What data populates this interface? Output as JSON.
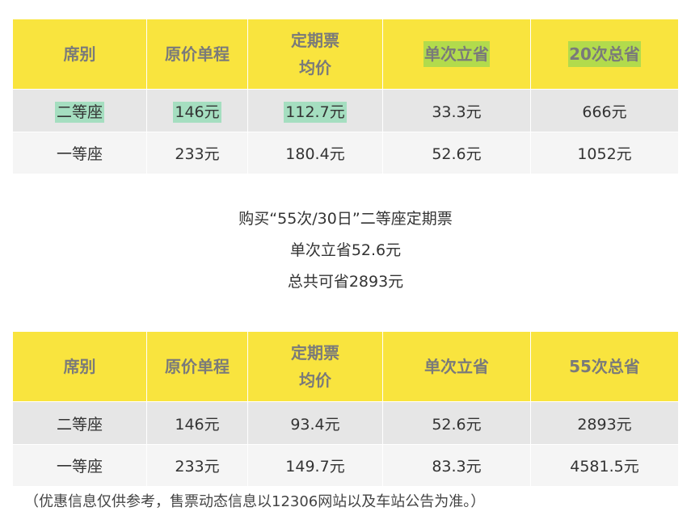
{
  "table1": {
    "headers": [
      "席别",
      "原价单程",
      "定期票\n均价",
      "单次立省",
      "20次总省"
    ],
    "header_line1": "定期票",
    "header_line2": "均价",
    "rows": [
      [
        "二等座",
        "146元",
        "112.7元",
        "33.3元",
        "666元"
      ],
      [
        "一等座",
        "233元",
        "180.4元",
        "52.6元",
        "1052元"
      ]
    ]
  },
  "summary": {
    "line1": "购买“55次/30日”二等座定期票",
    "line2": "单次立省52.6元",
    "line3": "总共可省2893元"
  },
  "table2": {
    "headers": [
      "席别",
      "原价单程",
      "定期票\n均价",
      "单次立省",
      "55次总省"
    ],
    "header_line1": "定期票",
    "header_line2": "均价",
    "rows": [
      [
        "二等座",
        "146元",
        "93.4元",
        "52.6元",
        "2893元"
      ],
      [
        "一等座",
        "233元",
        "149.7元",
        "83.3元",
        "4581.5元"
      ]
    ]
  },
  "footnote": "（优惠信息仅供参考，售票动态信息以12306网站以及车站公告为准。）",
  "colors": {
    "header_bg": "#f9e43e",
    "highlight_green": "#a5dec0",
    "highlight_lime": "#b2db4c",
    "row1_bg": "#e6e6e6",
    "row2_bg": "#f5f5f5"
  }
}
